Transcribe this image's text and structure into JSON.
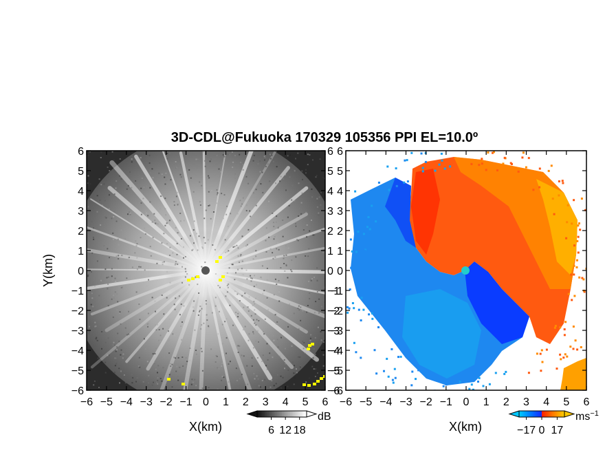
{
  "chart_data": {
    "title": "3D-CDL@Fukuoka 170329 105356 PPI EL=10.0º",
    "panels": [
      {
        "type": "heatmap",
        "quantity": "",
        "xlabel": "X(km)",
        "ylabel": "Y(km)",
        "xlim": [
          -6,
          6
        ],
        "ylim": [
          -6,
          6
        ],
        "xticks": [
          "−6",
          "−5",
          "−4",
          "−3",
          "−2",
          "−1",
          "0",
          "1",
          "2",
          "3",
          "4",
          "5",
          "6"
        ],
        "yticks": [
          "−6",
          "−5",
          "−4",
          "−3",
          "−2",
          "−1",
          "0",
          "1",
          "2",
          "3",
          "4",
          "5",
          "6"
        ],
        "colormap": "grayscale",
        "colorbar": {
          "unit": "dB",
          "ticks": [
            6,
            12,
            18
          ],
          "tick_labels": [
            "6",
            "12",
            "18"
          ],
          "range": [
            0,
            21
          ]
        },
        "center_marker_color": "#555555",
        "highlight_color": "#ffff00"
      },
      {
        "type": "heatmap",
        "quantity": "",
        "xlabel": "X(km)",
        "ylabel": "",
        "xlim": [
          -6,
          6
        ],
        "ylim": [
          -6,
          6
        ],
        "xticks": [
          "−6",
          "−5",
          "−4",
          "−3",
          "−2",
          "−1",
          "0",
          "1",
          "2",
          "3",
          "4",
          "5",
          "6"
        ],
        "yticks": [
          "−6",
          "−5",
          "−4",
          "−3",
          "−2",
          "−1",
          "0",
          "1",
          "2",
          "3",
          "4",
          "5",
          "6"
        ],
        "colormap": "blue-cyan-red-orange-yellow",
        "colorbar": {
          "unit": "ms",
          "unit_exponent": "−1",
          "ticks": [
            -17,
            0,
            17
          ],
          "tick_labels": [
            "−17",
            "0",
            "17"
          ],
          "range": [
            -25,
            25
          ]
        },
        "center_marker_color": "#22cccc"
      }
    ]
  }
}
